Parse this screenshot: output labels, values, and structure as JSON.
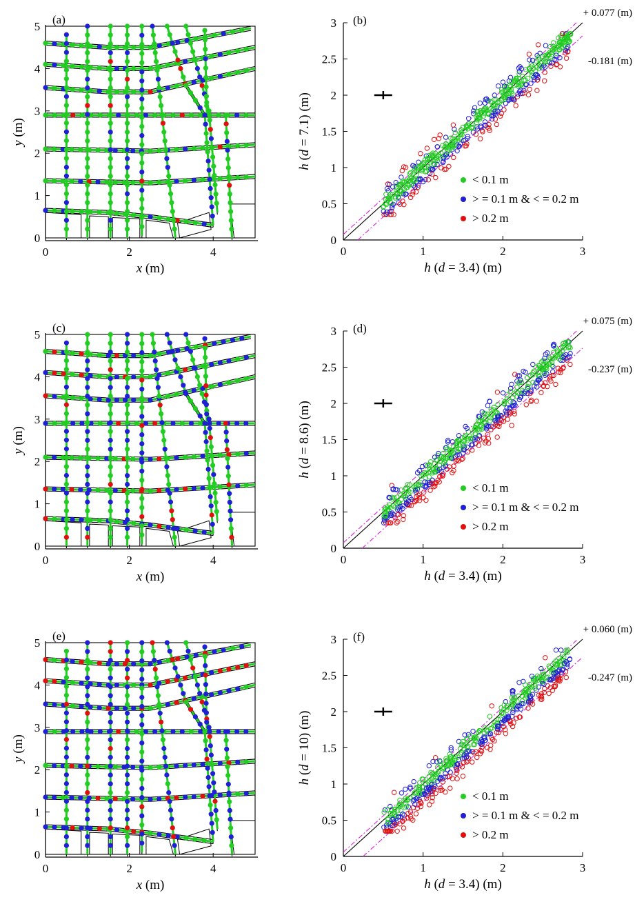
{
  "colors": {
    "green": "#22cc22",
    "blue": "#1f1fd6",
    "red": "#e01010",
    "magenta": "#e020e0",
    "black": "#000000"
  },
  "maps": [
    {
      "label": "(a)",
      "xlabel_var": "x",
      "xlabel_unit": " (m)",
      "ylabel_var": "y",
      "ylabel_unit": " (m)",
      "xticks": [
        "0",
        "2",
        "4"
      ],
      "yticks": [
        "0",
        "1",
        "2",
        "3",
        "4",
        "5"
      ]
    },
    {
      "label": "(c)",
      "xlabel_var": "x",
      "xlabel_unit": " (m)",
      "ylabel_var": "y",
      "ylabel_unit": " (m)",
      "xticks": [
        "0",
        "2",
        "4"
      ],
      "yticks": [
        "0",
        "1",
        "2",
        "3",
        "4",
        "5"
      ]
    },
    {
      "label": "(e)",
      "xlabel_var": "x",
      "xlabel_unit": " (m)",
      "ylabel_var": "y",
      "ylabel_unit": " (m)",
      "xticks": [
        "0",
        "2",
        "4"
      ],
      "yticks": [
        "0",
        "1",
        "2",
        "3",
        "4",
        "5"
      ]
    }
  ],
  "chart_data": [
    {
      "type": "scatter",
      "label": "(b)",
      "xlabel_pre": "h",
      "xlabel_mid": " (",
      "xlabel_d": "d",
      "xlabel_post": " = 3.4) (m)",
      "ylabel_pre": "h",
      "ylabel_mid": " (",
      "ylabel_d": "d",
      "ylabel_post": " = 7.1) (m)",
      "xlim": [
        0,
        3
      ],
      "ylim": [
        0,
        3
      ],
      "xticks": [
        "0",
        "1",
        "2",
        "3"
      ],
      "yticks": [
        "0",
        "0.5",
        "1",
        "1.5",
        "2",
        "2.5",
        "3"
      ],
      "offset_upper_label": "+ 0.077 (m)",
      "offset_lower_label": "-0.181 (m)",
      "offset_upper": 0.077,
      "offset_lower": -0.181,
      "legend": [
        "<  0.1 m",
        "> = 0.1 m & < = 0.2 m",
        "> 0.2 m"
      ],
      "error_cross": {
        "x": 0.5,
        "y": 2.0
      },
      "scatter_range": [
        0.5,
        2.85
      ]
    },
    {
      "type": "scatter",
      "label": "(d)",
      "xlabel_pre": "h",
      "xlabel_mid": " (",
      "xlabel_d": "d",
      "xlabel_post": " = 3.4) (m)",
      "ylabel_pre": "h",
      "ylabel_mid": " (",
      "ylabel_d": "d",
      "ylabel_post": " = 8.6) (m)",
      "xlim": [
        0,
        3
      ],
      "ylim": [
        0,
        3
      ],
      "xticks": [
        "0",
        "1",
        "2",
        "3"
      ],
      "yticks": [
        "0",
        "0.5",
        "1",
        "1.5",
        "2",
        "2.5",
        "3"
      ],
      "offset_upper_label": "+ 0.075 (m)",
      "offset_lower_label": "-0.237 (m)",
      "offset_upper": 0.075,
      "offset_lower": -0.237,
      "legend": [
        "<  0.1 m",
        "> = 0.1 m & < = 0.2 m",
        "> 0.2 m"
      ],
      "error_cross": {
        "x": 0.5,
        "y": 2.0
      },
      "scatter_range": [
        0.5,
        2.85
      ]
    },
    {
      "type": "scatter",
      "label": "(f)",
      "xlabel_pre": "h",
      "xlabel_mid": " (",
      "xlabel_d": "d",
      "xlabel_post": " = 3.4) (m)",
      "ylabel_pre": "h",
      "ylabel_mid": " (",
      "ylabel_d": "d",
      "ylabel_post": " = 10) (m)",
      "xlim": [
        0,
        3
      ],
      "ylim": [
        0,
        3
      ],
      "xticks": [
        "0",
        "1",
        "2",
        "3"
      ],
      "yticks": [
        "0",
        "0.5",
        "1",
        "1.5",
        "2",
        "2.5",
        "3"
      ],
      "offset_upper_label": "+ 0.060 (m)",
      "offset_lower_label": "-0.247 (m)",
      "offset_upper": 0.06,
      "offset_lower": -0.247,
      "legend": [
        "<  0.1 m",
        "> = 0.1 m & < = 0.2 m",
        "> 0.2 m"
      ],
      "error_cross": {
        "x": 0.5,
        "y": 2.0
      },
      "scatter_range": [
        0.5,
        2.85
      ]
    }
  ]
}
